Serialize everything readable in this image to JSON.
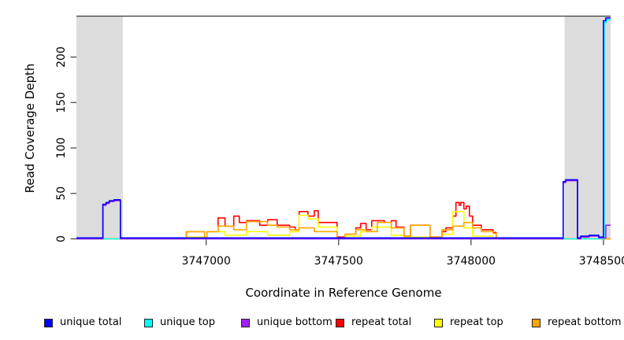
{
  "figure": {
    "background": "#ffffff",
    "plot_border_color": "#3c3c3c",
    "tick_color": "#3c3c3c",
    "masked_band_color": "#dcdcdc"
  },
  "chart_data": {
    "type": "line",
    "title": "",
    "xlabel": "Coordinate in Reference Genome",
    "ylabel": "Read Coverage Depth",
    "xlim": [
      3746510,
      3748527
    ],
    "ylim": [
      0,
      245
    ],
    "x_ticks": [
      3747000,
      3747500,
      3748000,
      3748500
    ],
    "x_tick_labels": [
      "3747000",
      "3747500",
      "3748000",
      "3748500"
    ],
    "y_ticks": [
      0,
      50,
      100,
      150,
      200
    ],
    "y_tick_labels": [
      "0",
      "50",
      "100",
      "150",
      "200"
    ],
    "grid": false,
    "legend_position": "bottom",
    "shaded_regions": [
      {
        "name": "masked-left",
        "x0": 3746510,
        "x1": 3746685
      },
      {
        "name": "masked-right",
        "x0": 3748353,
        "x1": 3748527
      }
    ],
    "legend": [
      {
        "name": "unique-total",
        "label": "unique total",
        "color": "#0000FF"
      },
      {
        "name": "unique-top",
        "label": "unique top",
        "color": "#00FFFF"
      },
      {
        "name": "unique-bottom",
        "label": "unique bottom",
        "color": "#A020F0"
      },
      {
        "name": "repeat-total",
        "label": "repeat total",
        "color": "#FF0000"
      },
      {
        "name": "repeat-top",
        "label": "repeat top",
        "color": "#FFFF00"
      },
      {
        "name": "repeat-bottom",
        "label": "repeat bottom",
        "color": "#FFA500"
      }
    ],
    "legend_item_offsets": [
      56,
      183,
      306,
      426,
      551,
      675
    ],
    "series": [
      {
        "name": "repeat-total",
        "label": "repeat total",
        "color": "#FF0000",
        "step_points": [
          [
            3746510,
            0
          ],
          [
            3746925,
            8
          ],
          [
            3746994,
            1
          ],
          [
            3747003,
            8
          ],
          [
            3747045,
            23
          ],
          [
            3747071,
            14
          ],
          [
            3747104,
            25
          ],
          [
            3747125,
            18
          ],
          [
            3747152,
            20
          ],
          [
            3747202,
            15
          ],
          [
            3747232,
            21
          ],
          [
            3747268,
            15
          ],
          [
            3747315,
            13
          ],
          [
            3747336,
            10
          ],
          [
            3747351,
            30
          ],
          [
            3747384,
            25
          ],
          [
            3747408,
            31
          ],
          [
            3747423,
            18
          ],
          [
            3747494,
            2
          ],
          [
            3747524,
            5
          ],
          [
            3747565,
            12
          ],
          [
            3747583,
            17
          ],
          [
            3747604,
            10
          ],
          [
            3747625,
            20
          ],
          [
            3747673,
            18
          ],
          [
            3747699,
            20
          ],
          [
            3747717,
            13
          ],
          [
            3747747,
            3
          ],
          [
            3747771,
            15
          ],
          [
            3747845,
            2
          ],
          [
            3747890,
            8
          ],
          [
            3747905,
            12
          ],
          [
            3747931,
            25
          ],
          [
            3747943,
            40
          ],
          [
            3747955,
            37
          ],
          [
            3747961,
            40
          ],
          [
            3747973,
            33
          ],
          [
            3747982,
            36
          ],
          [
            3747994,
            25
          ],
          [
            3748006,
            15
          ],
          [
            3748039,
            10
          ],
          [
            3748083,
            7
          ],
          [
            3748095,
            0
          ],
          [
            3748527,
            0
          ]
        ]
      },
      {
        "name": "repeat-top",
        "label": "repeat top",
        "color": "#FFFF00",
        "step_points": [
          [
            3746510,
            0
          ],
          [
            3746925,
            2
          ],
          [
            3747003,
            8
          ],
          [
            3747071,
            4
          ],
          [
            3747152,
            8
          ],
          [
            3747232,
            4
          ],
          [
            3747315,
            8
          ],
          [
            3747351,
            26
          ],
          [
            3747384,
            22
          ],
          [
            3747423,
            13
          ],
          [
            3747494,
            1
          ],
          [
            3747524,
            3
          ],
          [
            3747583,
            8
          ],
          [
            3747625,
            13
          ],
          [
            3747699,
            4
          ],
          [
            3747747,
            2
          ],
          [
            3747845,
            1
          ],
          [
            3747890,
            5
          ],
          [
            3747931,
            30
          ],
          [
            3747973,
            12
          ],
          [
            3748006,
            3
          ],
          [
            3748083,
            1
          ],
          [
            3748095,
            0
          ],
          [
            3748527,
            0
          ]
        ]
      },
      {
        "name": "repeat-bottom",
        "label": "repeat bottom",
        "color": "#FFA500",
        "step_points": [
          [
            3746510,
            0
          ],
          [
            3746925,
            8
          ],
          [
            3746994,
            1
          ],
          [
            3747003,
            8
          ],
          [
            3747045,
            14
          ],
          [
            3747104,
            10
          ],
          [
            3747152,
            19
          ],
          [
            3747232,
            15
          ],
          [
            3747268,
            13
          ],
          [
            3747315,
            10
          ],
          [
            3747351,
            12
          ],
          [
            3747408,
            8
          ],
          [
            3747494,
            1
          ],
          [
            3747524,
            5
          ],
          [
            3747565,
            10
          ],
          [
            3747604,
            8
          ],
          [
            3747646,
            18
          ],
          [
            3747699,
            12
          ],
          [
            3747747,
            3
          ],
          [
            3747771,
            15
          ],
          [
            3747845,
            2
          ],
          [
            3747890,
            10
          ],
          [
            3747931,
            14
          ],
          [
            3747973,
            18
          ],
          [
            3748006,
            12
          ],
          [
            3748039,
            8
          ],
          [
            3748083,
            6
          ],
          [
            3748095,
            0
          ],
          [
            3748527,
            0
          ]
        ]
      },
      {
        "name": "unique-top",
        "label": "unique top",
        "color": "#00FFFF",
        "step_points": [
          [
            3746510,
            0
          ],
          [
            3748503,
            238
          ],
          [
            3748512,
            241
          ],
          [
            3748527,
            241
          ]
        ]
      },
      {
        "name": "unique-bottom",
        "label": "unique bottom",
        "color": "#A020F0",
        "step_points": [
          [
            3746510,
            0
          ],
          [
            3746610,
            37
          ],
          [
            3746622,
            39
          ],
          [
            3746634,
            41
          ],
          [
            3746652,
            42
          ],
          [
            3746676,
            0
          ],
          [
            3748348,
            62
          ],
          [
            3748357,
            64
          ],
          [
            3748402,
            0
          ],
          [
            3748414,
            2
          ],
          [
            3748446,
            3
          ],
          [
            3748482,
            1
          ],
          [
            3748509,
            15
          ],
          [
            3748527,
            15
          ]
        ]
      },
      {
        "name": "unique-total",
        "label": "unique total",
        "color": "#0000FF",
        "step_points": [
          [
            3746510,
            1
          ],
          [
            3746610,
            38
          ],
          [
            3746622,
            40
          ],
          [
            3746634,
            42
          ],
          [
            3746652,
            43
          ],
          [
            3746676,
            1
          ],
          [
            3748348,
            63
          ],
          [
            3748357,
            65
          ],
          [
            3748402,
            1
          ],
          [
            3748414,
            3
          ],
          [
            3748446,
            4
          ],
          [
            3748482,
            2
          ],
          [
            3748500,
            240
          ],
          [
            3748509,
            243
          ],
          [
            3748527,
            243
          ]
        ]
      }
    ]
  }
}
